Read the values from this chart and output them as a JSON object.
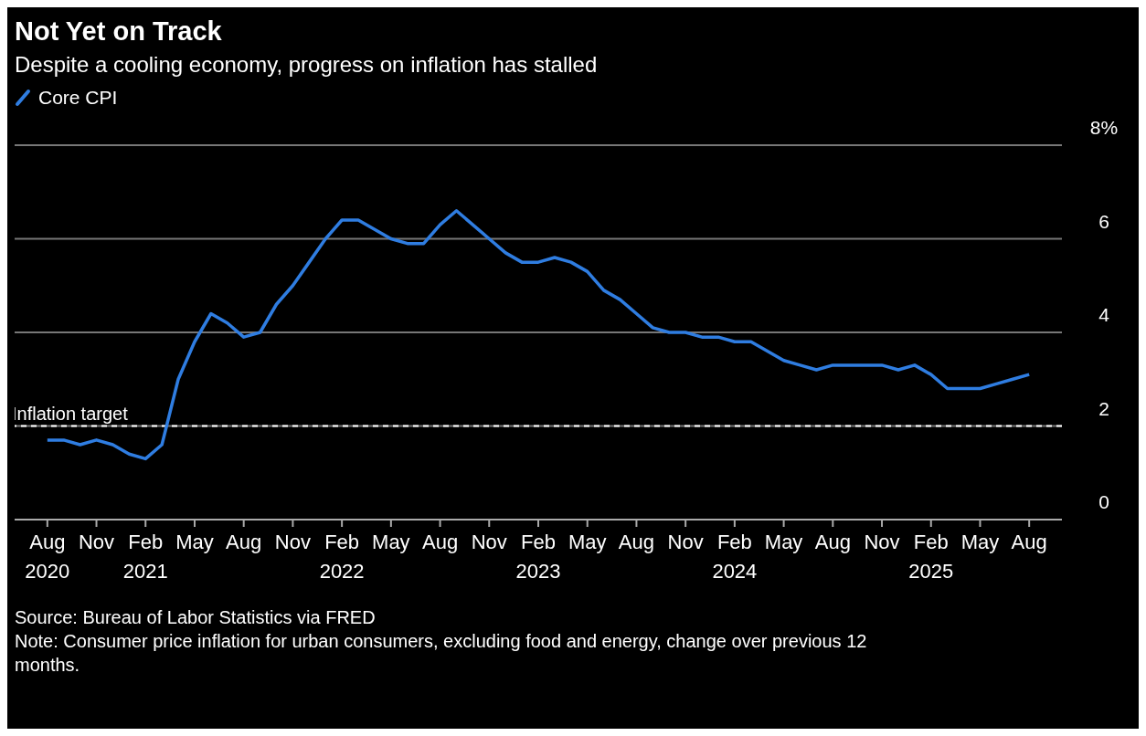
{
  "chart_data": {
    "type": "line",
    "title": "Not Yet on Track",
    "subtitle": "Despite a cooling economy, progress on inflation has stalled",
    "x": [
      "2020-08",
      "2020-09",
      "2020-10",
      "2020-11",
      "2020-12",
      "2021-01",
      "2021-02",
      "2021-03",
      "2021-04",
      "2021-05",
      "2021-06",
      "2021-07",
      "2021-08",
      "2021-09",
      "2021-10",
      "2021-11",
      "2021-12",
      "2022-01",
      "2022-02",
      "2022-03",
      "2022-04",
      "2022-05",
      "2022-06",
      "2022-07",
      "2022-08",
      "2022-09",
      "2022-10",
      "2022-11",
      "2022-12",
      "2023-01",
      "2023-02",
      "2023-03",
      "2023-04",
      "2023-05",
      "2023-06",
      "2023-07",
      "2023-08",
      "2023-09",
      "2023-10",
      "2023-11",
      "2023-12",
      "2024-01",
      "2024-02",
      "2024-03",
      "2024-04",
      "2024-05",
      "2024-06",
      "2024-07",
      "2024-08",
      "2024-09",
      "2024-10",
      "2024-11",
      "2024-12",
      "2025-01",
      "2025-02",
      "2025-03",
      "2025-04",
      "2025-05",
      "2025-06",
      "2025-07",
      "2025-08"
    ],
    "series": [
      {
        "name": "Core CPI",
        "color": "#2f7de1",
        "values": [
          1.7,
          1.7,
          1.6,
          1.7,
          1.6,
          1.4,
          1.3,
          1.6,
          3.0,
          3.8,
          4.4,
          4.2,
          3.9,
          4.0,
          4.6,
          5.0,
          5.5,
          6.0,
          6.4,
          6.4,
          6.2,
          6.0,
          5.9,
          5.9,
          6.3,
          6.6,
          6.3,
          6.0,
          5.7,
          5.5,
          5.5,
          5.6,
          5.5,
          5.3,
          4.9,
          4.7,
          4.4,
          4.1,
          4.0,
          4.0,
          3.9,
          3.9,
          3.8,
          3.8,
          3.6,
          3.4,
          3.3,
          3.2,
          3.3,
          3.3,
          3.3,
          3.3,
          3.2,
          3.3,
          3.1,
          2.8,
          2.8,
          2.8,
          2.9,
          3.0,
          3.1
        ]
      }
    ],
    "xlim": [
      "2020-06",
      "2025-10"
    ],
    "xticks": [
      {
        "value": "2020-08",
        "label": "Aug 2020"
      },
      {
        "value": "2020-11",
        "label": "Nov"
      },
      {
        "value": "2021-02",
        "label": "Feb 2021"
      },
      {
        "value": "2021-05",
        "label": "May"
      },
      {
        "value": "2021-08",
        "label": "Aug"
      },
      {
        "value": "2021-11",
        "label": "Nov"
      },
      {
        "value": "2022-02",
        "label": "Feb 2022"
      },
      {
        "value": "2022-05",
        "label": "May"
      },
      {
        "value": "2022-08",
        "label": "Aug"
      },
      {
        "value": "2022-11",
        "label": "Nov"
      },
      {
        "value": "2023-02",
        "label": "Feb 2023"
      },
      {
        "value": "2023-05",
        "label": "May"
      },
      {
        "value": "2023-08",
        "label": "Aug"
      },
      {
        "value": "2023-11",
        "label": "Nov"
      },
      {
        "value": "2024-02",
        "label": "Feb 2024"
      },
      {
        "value": "2024-05",
        "label": "May"
      },
      {
        "value": "2024-08",
        "label": "Aug"
      },
      {
        "value": "2024-11",
        "label": "Nov"
      },
      {
        "value": "2025-02",
        "label": "Feb 2025"
      },
      {
        "value": "2025-05",
        "label": "May"
      },
      {
        "value": "2025-08",
        "label": "Aug"
      }
    ],
    "ylim": [
      0,
      8
    ],
    "yticks": [
      0,
      2,
      4,
      6,
      {
        "value": 8,
        "label": "8%"
      }
    ],
    "grid": "y",
    "legend": "top left",
    "marker": "none",
    "line_style": "solid",
    "ref_lines": [
      {
        "axis": "y",
        "value": 2,
        "label": "Inflation target",
        "color": "#ffffff",
        "line_style": "dashed"
      }
    ],
    "annotations": [
      "Source: Bureau of Labor Statistics via FRED",
      "Note: Consumer price inflation for urban consumers, excluding food and energy, change over previous 12 months."
    ]
  }
}
